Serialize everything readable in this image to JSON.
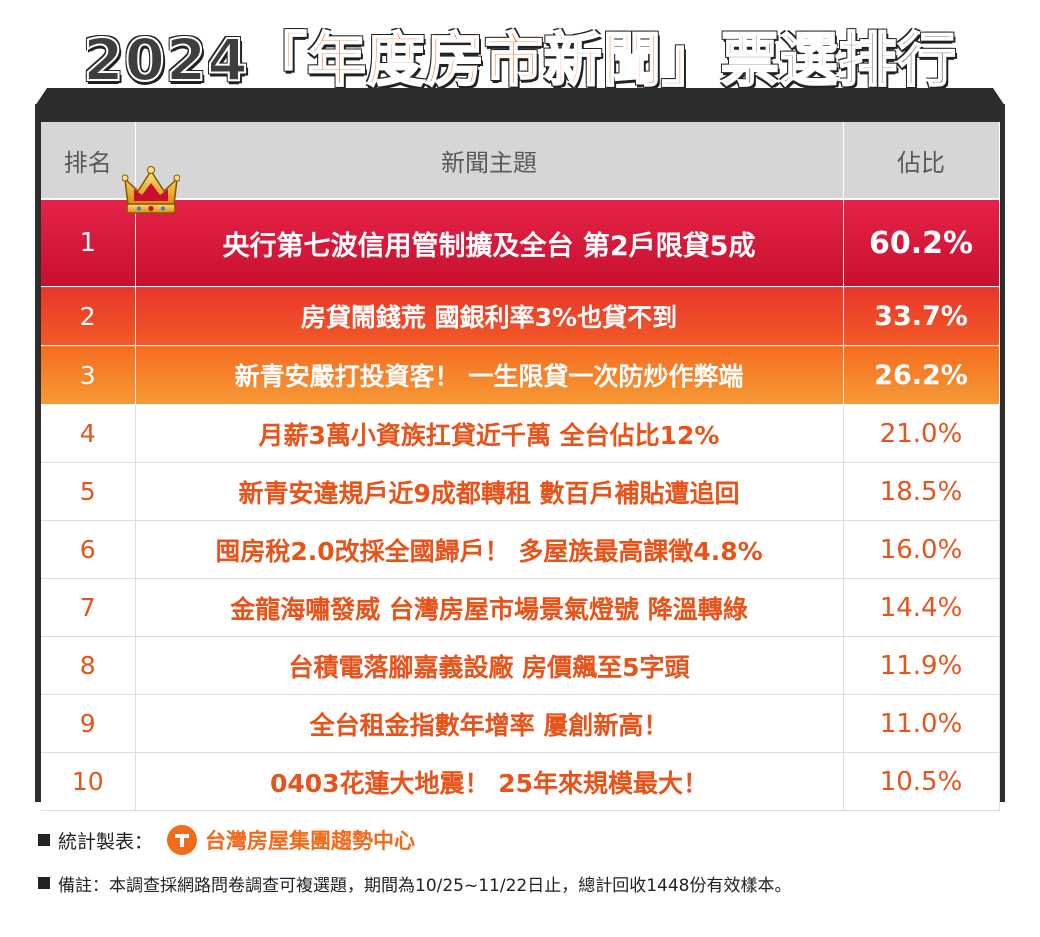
{
  "title": {
    "year": "2024",
    "bracket_open": "「",
    "highlight": "年度房市新聞",
    "bracket_close": "」",
    "suffix": "票選排行"
  },
  "table": {
    "headers": {
      "rank": "排名",
      "topic": "新聞主題",
      "share": "佔比"
    },
    "rows": [
      {
        "rank": "1",
        "topic": "央行第七波信用管制擴及全台 第2戶限貸5成",
        "share": "60.2%"
      },
      {
        "rank": "2",
        "topic": "房貸鬧錢荒 國銀利率3%也貸不到",
        "share": "33.7%"
      },
      {
        "rank": "3",
        "topic": "新青安嚴打投資客！ 一生限貸一次防炒作弊端",
        "share": "26.2%"
      },
      {
        "rank": "4",
        "topic": "月薪3萬小資族扛貸近千萬 全台佔比12%",
        "share": "21.0%"
      },
      {
        "rank": "5",
        "topic": "新青安違規戶近9成都轉租 數百戶補貼遭追回",
        "share": "18.5%"
      },
      {
        "rank": "6",
        "topic": "囤房稅2.0改採全國歸戶！ 多屋族最高課徵4.8%",
        "share": "16.0%"
      },
      {
        "rank": "7",
        "topic": "金龍海嘯發威 台灣房屋市場景氣燈號 降溫轉綠",
        "share": "14.4%"
      },
      {
        "rank": "8",
        "topic": "台積電落腳嘉義設廠 房價飆至5字頭",
        "share": "11.9%"
      },
      {
        "rank": "9",
        "topic": "全台租金指數年增率 屢創新高！",
        "share": "11.0%"
      },
      {
        "rank": "10",
        "topic": "0403花蓮大地震！ 25年來規模最大！",
        "share": "10.5%"
      }
    ]
  },
  "footer": {
    "source_label": "統計製表：",
    "source_org": "台灣房屋集團趨勢中心",
    "note": "備註：本調查採網路問卷調查可複選題，期間為10/25~11/22日止，總計回收1448份有效樣本。"
  },
  "colors": {
    "accent": "#f26a1b",
    "rank1": "#d41838",
    "rank2": "#ee4a28",
    "rank3": "#f5872c",
    "text_orange": "#e8531a",
    "header_gray": "#d6d6d6",
    "frame": "#2d2d2d"
  },
  "icons": {
    "crown": "crown-icon",
    "logo": "company-logo-icon"
  }
}
